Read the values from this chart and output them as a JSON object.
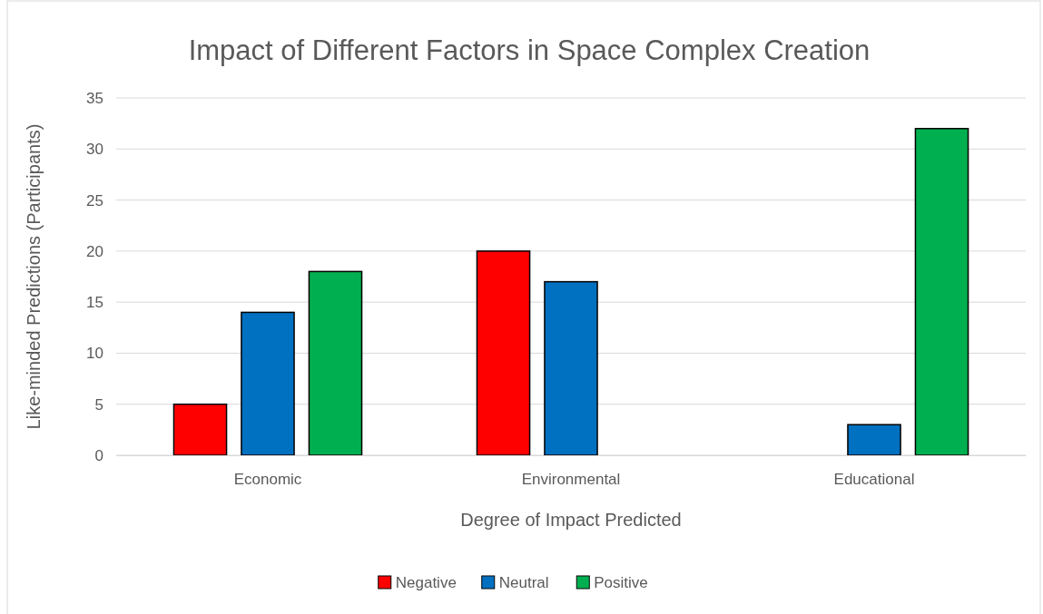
{
  "chart_data": {
    "type": "bar",
    "title": "Impact of Different Factors in Space Complex Creation",
    "xlabel": "Degree of Impact Predicted",
    "ylabel": "Like-minded Predictions (Participants)",
    "categories": [
      "Economic",
      "Environmental",
      "Educational"
    ],
    "series": [
      {
        "name": "Negative",
        "color": "#ff0000",
        "values": [
          5,
          20,
          0
        ]
      },
      {
        "name": "Neutral",
        "color": "#0070c0",
        "values": [
          14,
          17,
          3
        ]
      },
      {
        "name": "Positive",
        "color": "#00b050",
        "values": [
          18,
          0,
          32
        ]
      }
    ],
    "ylim": [
      0,
      35
    ],
    "yticks": [
      0,
      5,
      10,
      15,
      20,
      25,
      30,
      35
    ],
    "grid": "y",
    "legend": "bottom"
  }
}
